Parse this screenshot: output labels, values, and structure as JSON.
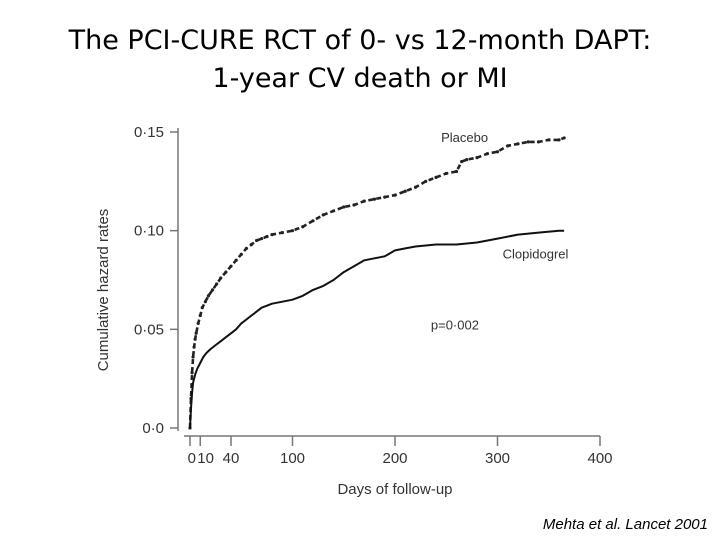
{
  "slide": {
    "title_line1": "The PCI-CURE RCT of 0- vs 12-month DAPT:",
    "title_line2": "1-year CV death or MI",
    "citation": "Mehta et al. Lancet 2001"
  },
  "chart_data": {
    "type": "line",
    "title": "The PCI-CURE RCT of 0- vs 12-month DAPT: 1-year CV death or MI",
    "xlabel": "Days of follow-up",
    "ylabel": "Cumulative hazard rates",
    "xlim": [
      0,
      400
    ],
    "ylim": [
      0,
      0.15
    ],
    "x_ticks": [
      {
        "value": 0,
        "label": "0"
      },
      {
        "value": 10,
        "label": "10"
      },
      {
        "value": 40,
        "label": "40"
      },
      {
        "value": 100,
        "label": "100"
      },
      {
        "value": 200,
        "label": "200"
      },
      {
        "value": 300,
        "label": "300"
      },
      {
        "value": 400,
        "label": "400"
      }
    ],
    "y_ticks": [
      {
        "value": 0,
        "label": "0·0"
      },
      {
        "value": 0.05,
        "label": "0·05"
      },
      {
        "value": 0.1,
        "label": "0·10"
      },
      {
        "value": 0.15,
        "label": "0·15"
      }
    ],
    "annotation": {
      "text": "p=0·002",
      "x": 235,
      "y": 0.05
    },
    "series": [
      {
        "name": "Placebo",
        "style": "dashed",
        "color": "#222222",
        "label_at": {
          "x": 245,
          "y": 0.145
        },
        "x": [
          0,
          1,
          2,
          3,
          4,
          5,
          6,
          8,
          10,
          12,
          15,
          18,
          22,
          26,
          30,
          35,
          40,
          45,
          50,
          55,
          60,
          65,
          70,
          75,
          80,
          90,
          100,
          110,
          120,
          130,
          140,
          150,
          160,
          170,
          180,
          190,
          200,
          210,
          220,
          230,
          240,
          250,
          260,
          265,
          270,
          280,
          290,
          300,
          310,
          320,
          330,
          340,
          350,
          360,
          365
        ],
        "y": [
          0.0,
          0.015,
          0.028,
          0.036,
          0.041,
          0.045,
          0.048,
          0.053,
          0.057,
          0.061,
          0.064,
          0.067,
          0.07,
          0.073,
          0.076,
          0.079,
          0.082,
          0.085,
          0.088,
          0.091,
          0.093,
          0.095,
          0.096,
          0.097,
          0.098,
          0.099,
          0.1,
          0.102,
          0.105,
          0.108,
          0.11,
          0.112,
          0.113,
          0.115,
          0.116,
          0.117,
          0.118,
          0.12,
          0.122,
          0.125,
          0.127,
          0.129,
          0.13,
          0.135,
          0.136,
          0.137,
          0.139,
          0.14,
          0.143,
          0.144,
          0.145,
          0.145,
          0.146,
          0.146,
          0.147
        ]
      },
      {
        "name": "Clopidogrel",
        "style": "solid",
        "color": "#111111",
        "label_at": {
          "x": 305,
          "y": 0.086
        },
        "x": [
          0,
          1,
          2,
          3,
          5,
          7,
          10,
          13,
          16,
          20,
          25,
          30,
          35,
          40,
          45,
          50,
          55,
          60,
          65,
          70,
          75,
          80,
          90,
          100,
          110,
          120,
          130,
          140,
          150,
          160,
          170,
          180,
          190,
          200,
          210,
          220,
          240,
          260,
          280,
          300,
          320,
          340,
          360,
          365
        ],
        "y": [
          0.0,
          0.01,
          0.018,
          0.023,
          0.027,
          0.03,
          0.033,
          0.036,
          0.038,
          0.04,
          0.042,
          0.044,
          0.046,
          0.048,
          0.05,
          0.053,
          0.055,
          0.057,
          0.059,
          0.061,
          0.062,
          0.063,
          0.064,
          0.065,
          0.067,
          0.07,
          0.072,
          0.075,
          0.079,
          0.082,
          0.085,
          0.086,
          0.087,
          0.09,
          0.091,
          0.092,
          0.093,
          0.093,
          0.094,
          0.096,
          0.098,
          0.099,
          0.1,
          0.1
        ]
      }
    ]
  }
}
